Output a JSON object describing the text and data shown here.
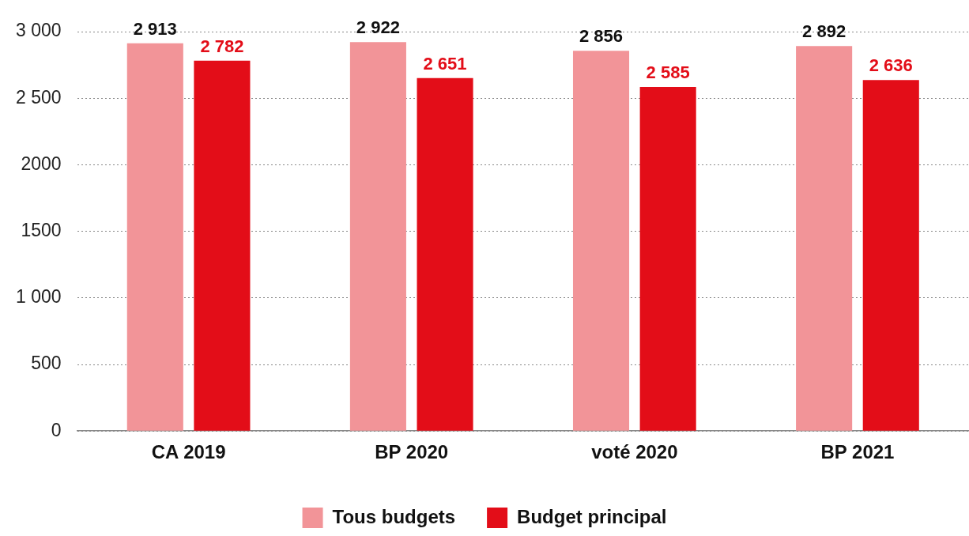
{
  "chart_data": {
    "type": "bar",
    "categories": [
      "CA 2019",
      "BP 2020",
      "voté 2020",
      "BP 2021"
    ],
    "series": [
      {
        "name": "Tous budgets",
        "color": "#f29498",
        "values": [
          2913,
          2922,
          2856,
          2892
        ],
        "value_labels": [
          "2 913",
          "2 922",
          "2 856",
          "2 892"
        ]
      },
      {
        "name": "Budget principal",
        "color": "#e30d18",
        "values": [
          2782,
          2651,
          2585,
          2636
        ],
        "value_labels": [
          "2 782",
          "2 651",
          "2 585",
          "2 636"
        ]
      }
    ],
    "ylim": [
      0,
      3000
    ],
    "yticks": [
      0,
      500,
      {
        "value": 1000,
        "label": "1 000"
      },
      1500,
      2000,
      {
        "value": 2500,
        "label": "2 500"
      },
      {
        "value": 3000,
        "label": "3 000"
      }
    ],
    "grid": "y",
    "legend": "bottom"
  }
}
